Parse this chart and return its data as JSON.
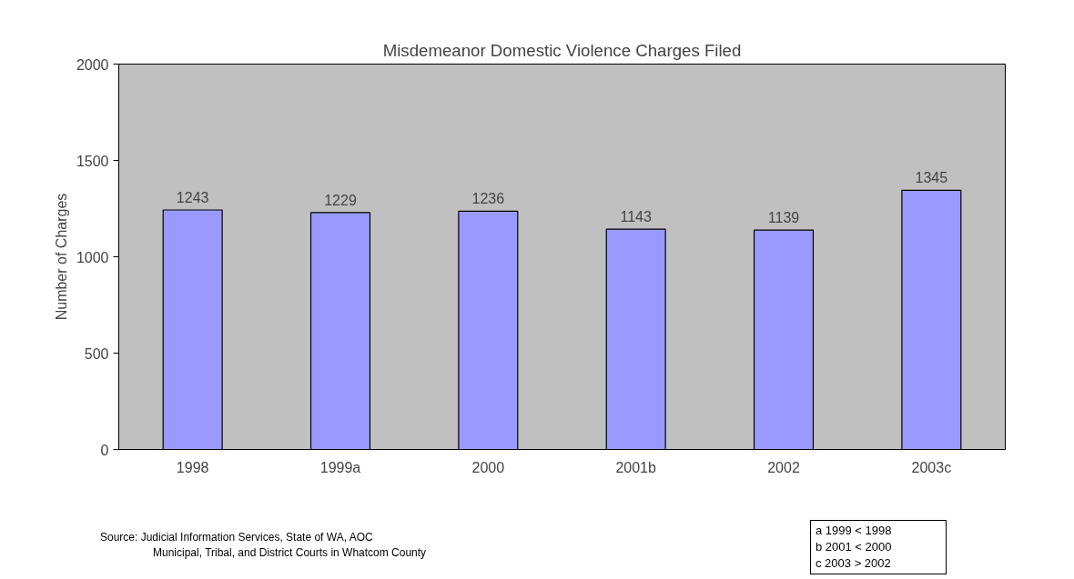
{
  "chart_data": {
    "type": "bar",
    "title": "Misdemeanor Domestic Violence Charges Filed",
    "ylabel": "Number of Charges",
    "categories": [
      "1998",
      "1999a",
      "2000",
      "2001b",
      "2002",
      "2003c"
    ],
    "values": [
      1243,
      1229,
      1236,
      1143,
      1139,
      1345
    ],
    "color": "#9999ff",
    "ylim": [
      0,
      2000
    ],
    "yticks": [
      0,
      500,
      1000,
      1500,
      2000
    ],
    "grid": false,
    "data_labels": true,
    "annotations": [
      "Source:  Judicial Information Services, State of WA, AOC",
      "Municipal, Tribal, and District  Courts in Whatcom County",
      "a 1999 < 1998",
      "b 2001 < 2000",
      "c 2003 > 2002"
    ]
  }
}
